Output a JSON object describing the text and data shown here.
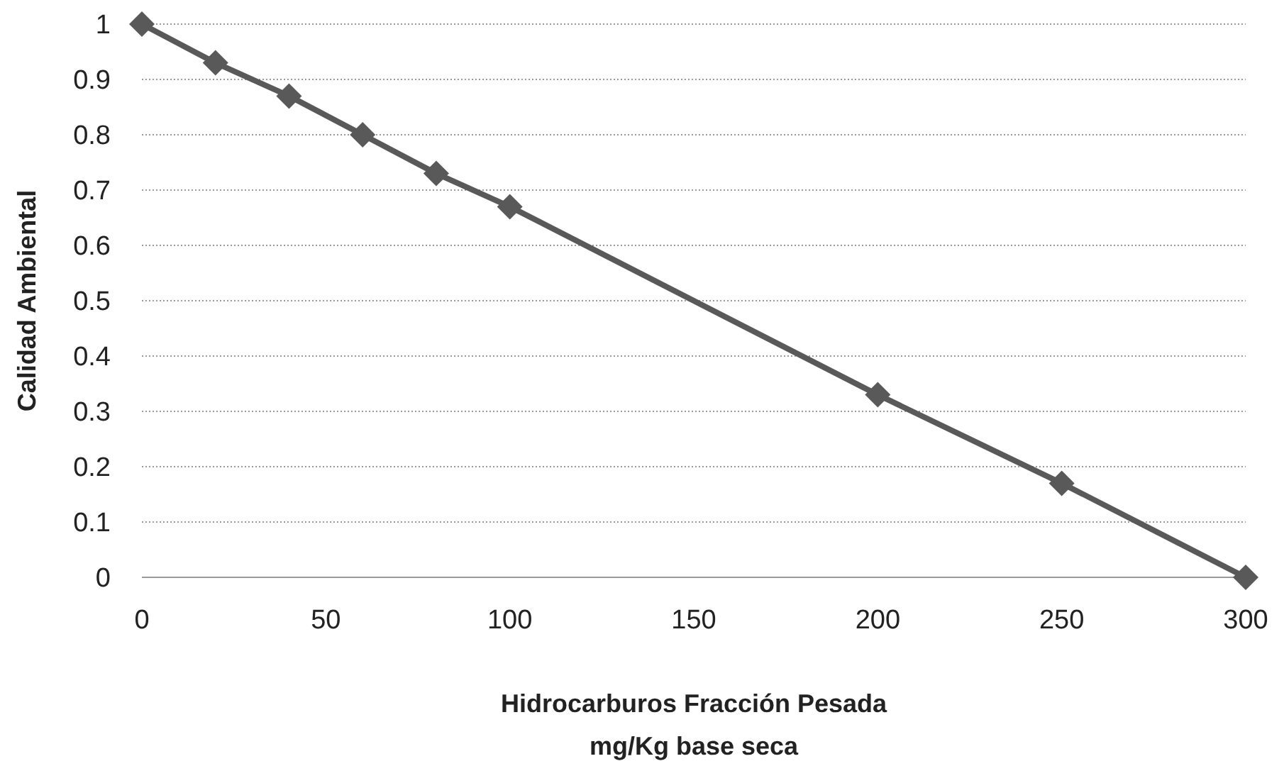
{
  "chart_data": {
    "type": "line",
    "xlabel": "Hidrocarburos Fracción Pesada\nmg/Kg base seca",
    "ylabel": "Calidad Ambiental",
    "x": [
      0,
      20,
      40,
      60,
      80,
      100,
      200,
      250,
      300
    ],
    "series": [
      {
        "color": "#595959",
        "values": [
          1,
          0.93,
          0.87,
          0.8,
          0.73,
          0.67,
          0.33,
          0.17,
          0
        ]
      }
    ],
    "xlim": [
      0,
      300
    ],
    "xticks": [
      0,
      50,
      100,
      150,
      200,
      250,
      300
    ],
    "ylim": [
      0,
      1
    ],
    "yticks": [
      0,
      0.1,
      0.2,
      0.3,
      0.4,
      0.5,
      0.6,
      0.7,
      0.8,
      0.9,
      1
    ],
    "grid": "y",
    "marker": "diamond",
    "line_style": "solid"
  }
}
